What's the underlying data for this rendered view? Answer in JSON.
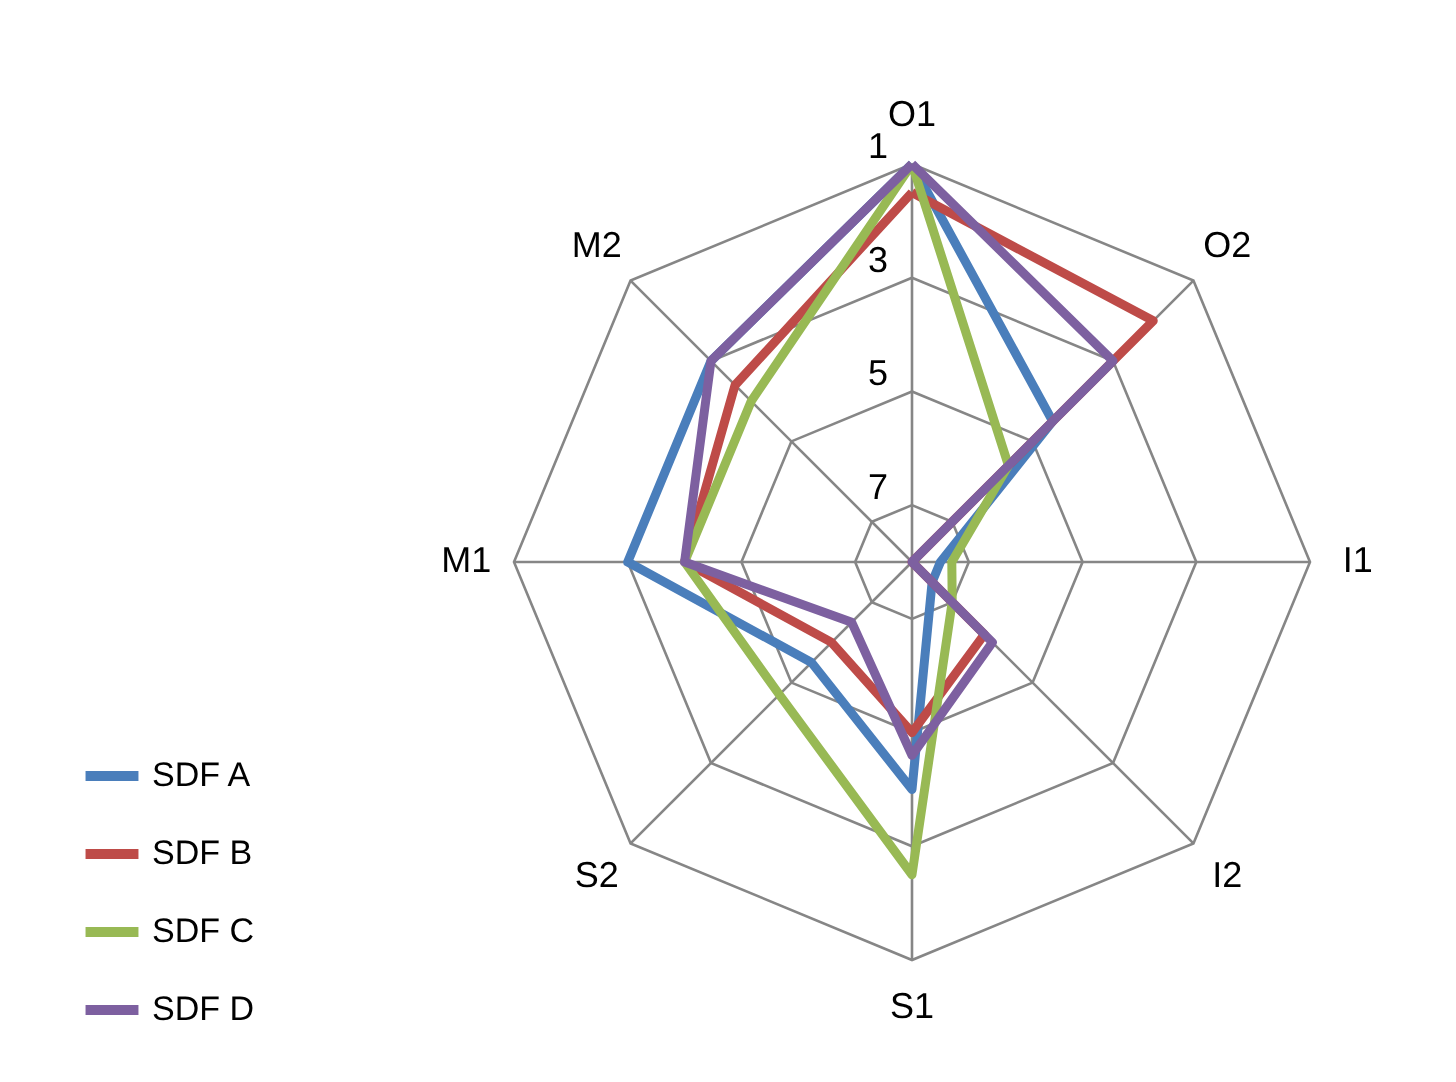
{
  "chart_data": {
    "type": "radar",
    "categories": [
      "O1",
      "O2",
      "I1",
      "I2",
      "S1",
      "S2",
      "M1",
      "M2"
    ],
    "series": [
      {
        "name": "SDF A",
        "color": "#4a7ebb",
        "values": [
          1,
          4.5,
          7.5,
          7.5,
          4,
          5.5,
          3,
          3
        ]
      },
      {
        "name": "SDF B",
        "color": "#be4b48",
        "values": [
          1.5,
          2,
          8,
          6.2,
          5,
          6,
          4,
          3.6
        ]
      },
      {
        "name": "SDF C",
        "color": "#98b954",
        "values": [
          1,
          5.6,
          7.3,
          7,
          2.5,
          4.7,
          4,
          4
        ]
      },
      {
        "name": "SDF D",
        "color": "#7d60a0",
        "values": [
          1,
          3,
          8,
          6,
          4.6,
          6.5,
          4,
          3
        ]
      }
    ],
    "ylim": [
      8,
      1
    ],
    "yticks": [
      1,
      3,
      5,
      7
    ],
    "grid": true,
    "legend": "bottom left"
  }
}
